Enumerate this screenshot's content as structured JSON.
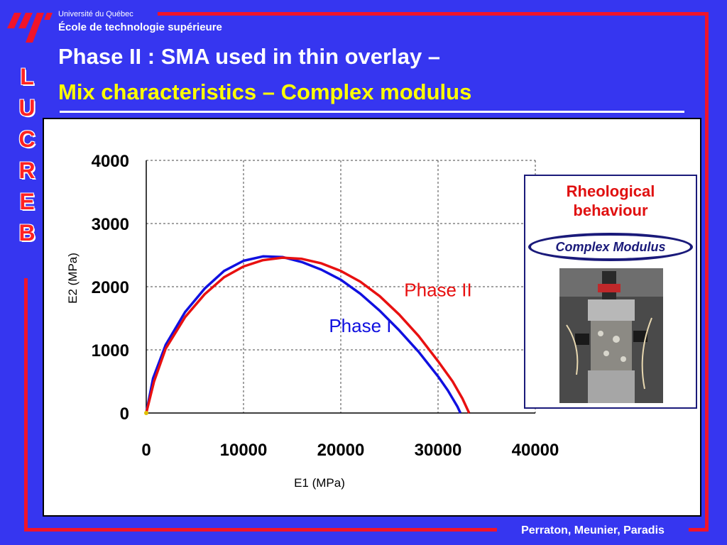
{
  "header": {
    "university": "Université du Québec",
    "school": "École de technologie supérieure"
  },
  "title": {
    "line1": "Phase II : SMA used in thin overlay –",
    "line2": "Mix characteristics – Complex modulus"
  },
  "side_letters": [
    "L",
    "U",
    "C",
    "R",
    "E",
    "B"
  ],
  "inset": {
    "title_line1": "Rheological",
    "title_line2": "behaviour",
    "oval_label": "Complex Modulus"
  },
  "footer": {
    "authors": "Perraton, Meunier, Paradis"
  },
  "colors": {
    "background": "#3636f0",
    "accent_red": "#f0142a",
    "title_yellow": "#ffff00",
    "phase1": "#1010e0",
    "phase2": "#e81010"
  },
  "chart_data": {
    "type": "line",
    "xlabel": "E1 (MPa)",
    "ylabel": "E2 (MPa)",
    "xlim": [
      0,
      40000
    ],
    "ylim": [
      0,
      4000
    ],
    "xticks": [
      0,
      10000,
      20000,
      30000,
      40000
    ],
    "yticks": [
      0,
      1000,
      2000,
      3000,
      4000
    ],
    "grid": true,
    "series": [
      {
        "name": "Phase I",
        "x": [
          0,
          700,
          2000,
          4000,
          6000,
          8000,
          10000,
          12000,
          14000,
          16000,
          18000,
          20000,
          22000,
          24000,
          26000,
          28000,
          30000,
          31000,
          32000,
          32300
        ],
        "y": [
          0,
          550,
          1080,
          1600,
          1970,
          2250,
          2410,
          2480,
          2470,
          2390,
          2270,
          2110,
          1890,
          1620,
          1310,
          970,
          580,
          360,
          100,
          0
        ]
      },
      {
        "name": "Phase II",
        "x": [
          0,
          800,
          2000,
          4000,
          6000,
          8000,
          10000,
          12000,
          14000,
          16000,
          18000,
          20000,
          22000,
          24000,
          26000,
          28000,
          30000,
          31500,
          32500,
          33200
        ],
        "y": [
          0,
          500,
          1020,
          1520,
          1880,
          2150,
          2320,
          2420,
          2460,
          2440,
          2370,
          2250,
          2080,
          1850,
          1560,
          1220,
          820,
          500,
          230,
          0
        ]
      }
    ]
  }
}
